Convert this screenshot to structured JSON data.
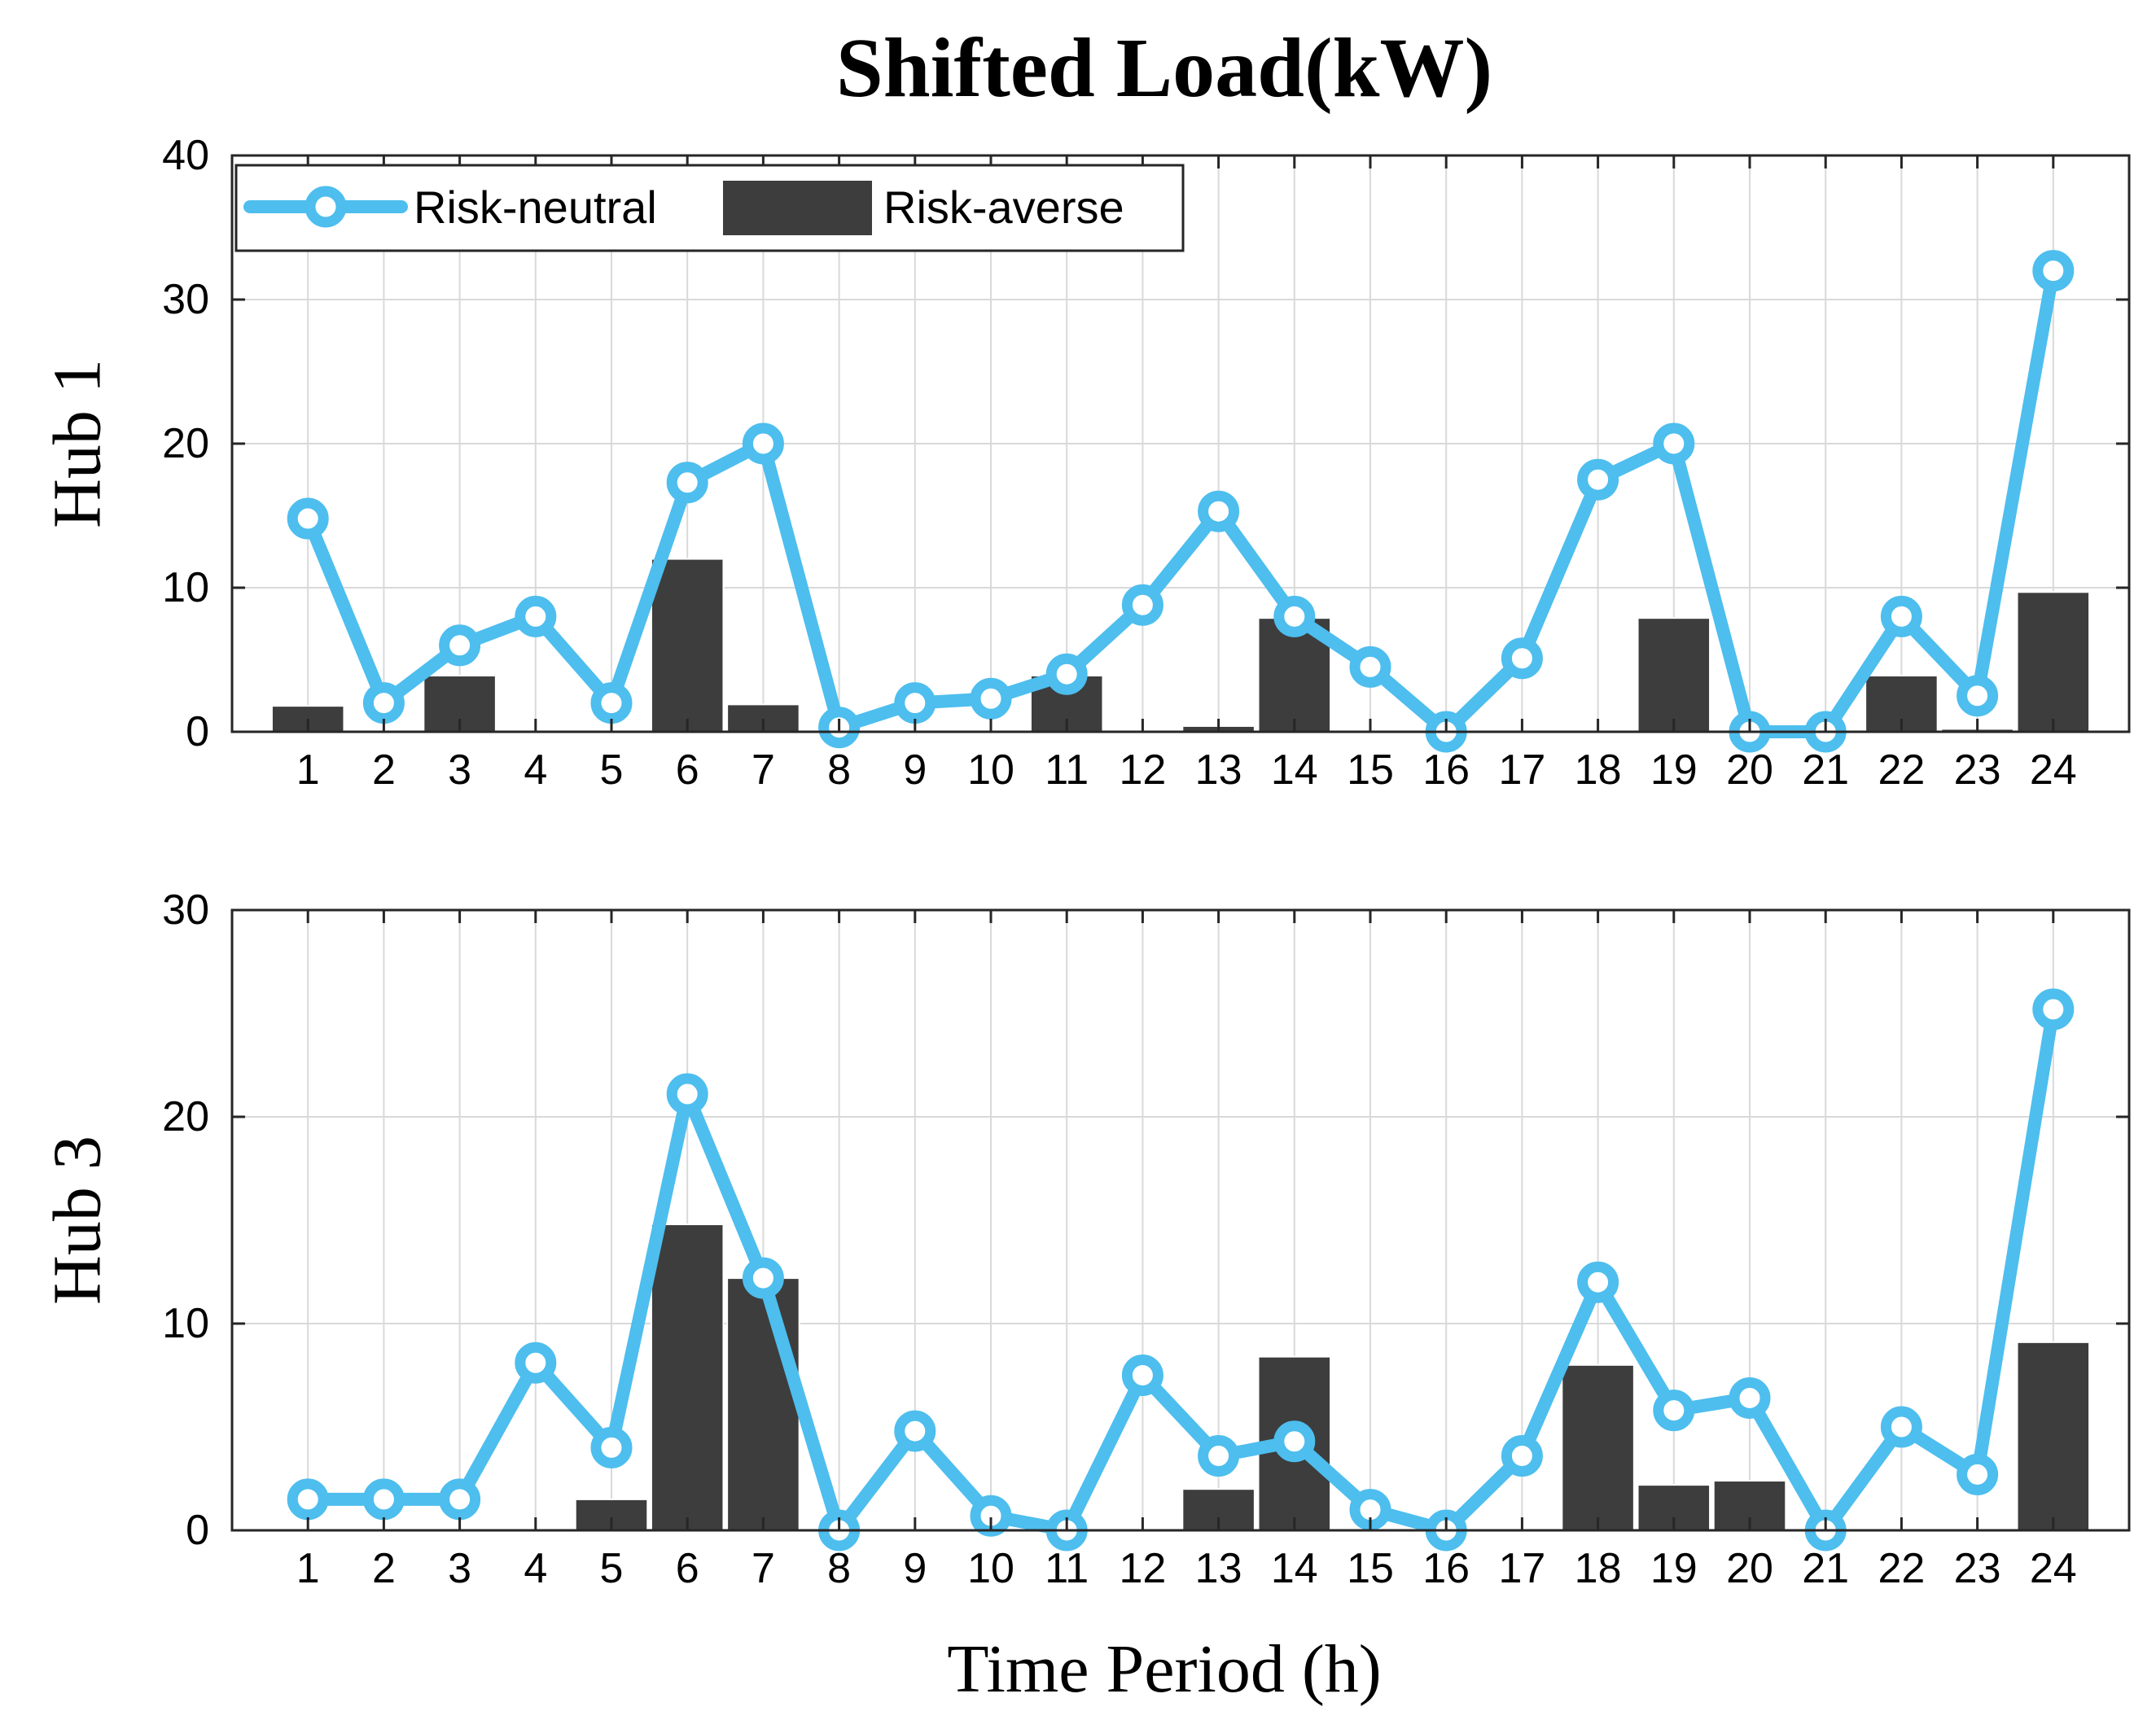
{
  "figure": {
    "title": "Shifted Load(kW)",
    "xlabel": "Time Period (h)"
  },
  "legend": {
    "neutral_label": "Risk-neutral",
    "averse_label": "Risk-averse"
  },
  "colors": {
    "line": "#4DBEEE",
    "bar": "#3D3D3D",
    "grid": "#D9D9D9",
    "axis": "#262626"
  },
  "chart_data": [
    {
      "type": "bar+line",
      "panel": "Hub 1",
      "ylabel": "Hub 1",
      "categories": [
        "1",
        "2",
        "3",
        "4",
        "5",
        "6",
        "7",
        "8",
        "9",
        "10",
        "11",
        "12",
        "13",
        "14",
        "15",
        "16",
        "17",
        "18",
        "19",
        "20",
        "21",
        "22",
        "23",
        "24"
      ],
      "ylim": [
        0,
        40
      ],
      "yticks": [
        "0",
        "10",
        "20",
        "30",
        "40"
      ],
      "grid": true,
      "legend_position": "top-left",
      "series": [
        {
          "name": "Risk-neutral",
          "type": "line",
          "values": [
            14.8,
            2.0,
            6.0,
            8.0,
            2.0,
            17.3,
            20.0,
            0.3,
            2.0,
            2.3,
            4.0,
            8.8,
            15.3,
            8.0,
            4.5,
            0.0,
            5.1,
            17.5,
            20.0,
            0.0,
            0.0,
            8.0,
            2.5,
            32.0
          ]
        },
        {
          "name": "Risk-averse",
          "type": "bar",
          "values": [
            1.8,
            0,
            3.9,
            0,
            0,
            12.0,
            1.9,
            0,
            0,
            0,
            3.9,
            0,
            0.4,
            7.9,
            0,
            0,
            0,
            0,
            7.9,
            0,
            0,
            3.9,
            0.2,
            9.7
          ]
        }
      ]
    },
    {
      "type": "bar+line",
      "panel": "Hub 3",
      "ylabel": "Hub 3",
      "categories": [
        "1",
        "2",
        "3",
        "4",
        "5",
        "6",
        "7",
        "8",
        "9",
        "10",
        "11",
        "12",
        "13",
        "14",
        "15",
        "16",
        "17",
        "18",
        "19",
        "20",
        "21",
        "22",
        "23",
        "24"
      ],
      "ylim": [
        0,
        30
      ],
      "yticks": [
        "0",
        "10",
        "20",
        "30"
      ],
      "grid": true,
      "series": [
        {
          "name": "Risk-neutral",
          "type": "line",
          "values": [
            1.5,
            1.5,
            1.5,
            8.1,
            4.0,
            21.1,
            12.2,
            0.0,
            4.8,
            0.7,
            0.0,
            7.5,
            3.6,
            4.3,
            1.0,
            0.0,
            3.6,
            12.0,
            5.8,
            6.4,
            0.0,
            5.0,
            2.7,
            25.2
          ]
        },
        {
          "name": "Risk-averse",
          "type": "bar",
          "values": [
            0,
            0,
            0,
            0,
            1.5,
            14.8,
            12.2,
            0,
            0,
            0,
            0,
            0,
            2.0,
            8.4,
            0,
            0,
            0,
            8.0,
            2.2,
            2.4,
            0,
            0,
            0,
            9.1
          ]
        }
      ]
    }
  ]
}
